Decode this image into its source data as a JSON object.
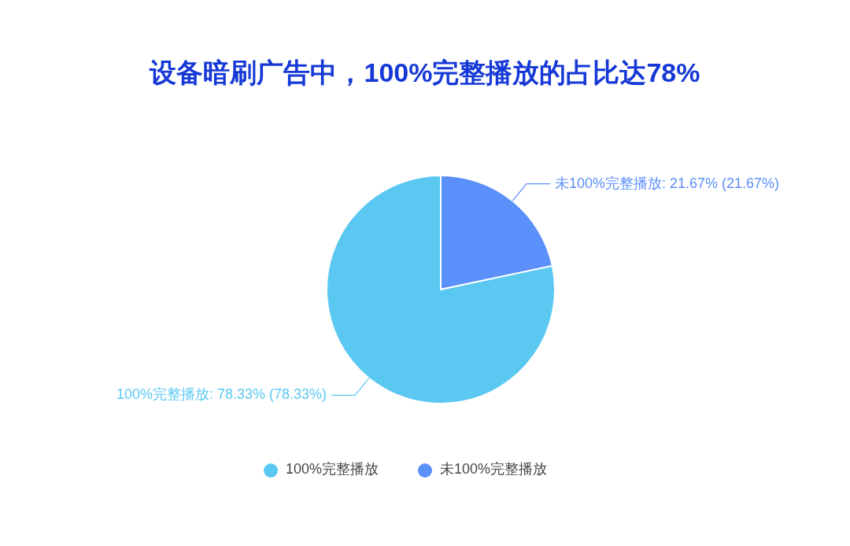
{
  "chart_data": {
    "type": "pie",
    "title": "设备暗刷广告中，100%完整播放的占比达78%",
    "categories": [
      "未100%完整播放",
      "100%完整播放"
    ],
    "values": [
      21.67,
      78.33
    ],
    "colors": [
      "#5b8ff9",
      "#5bc8f2"
    ],
    "value_labels": [
      "未100%完整播放: 21.67% (21.67%)",
      "100%完整播放: 78.33% (78.33%)"
    ],
    "legend": "bottom"
  }
}
